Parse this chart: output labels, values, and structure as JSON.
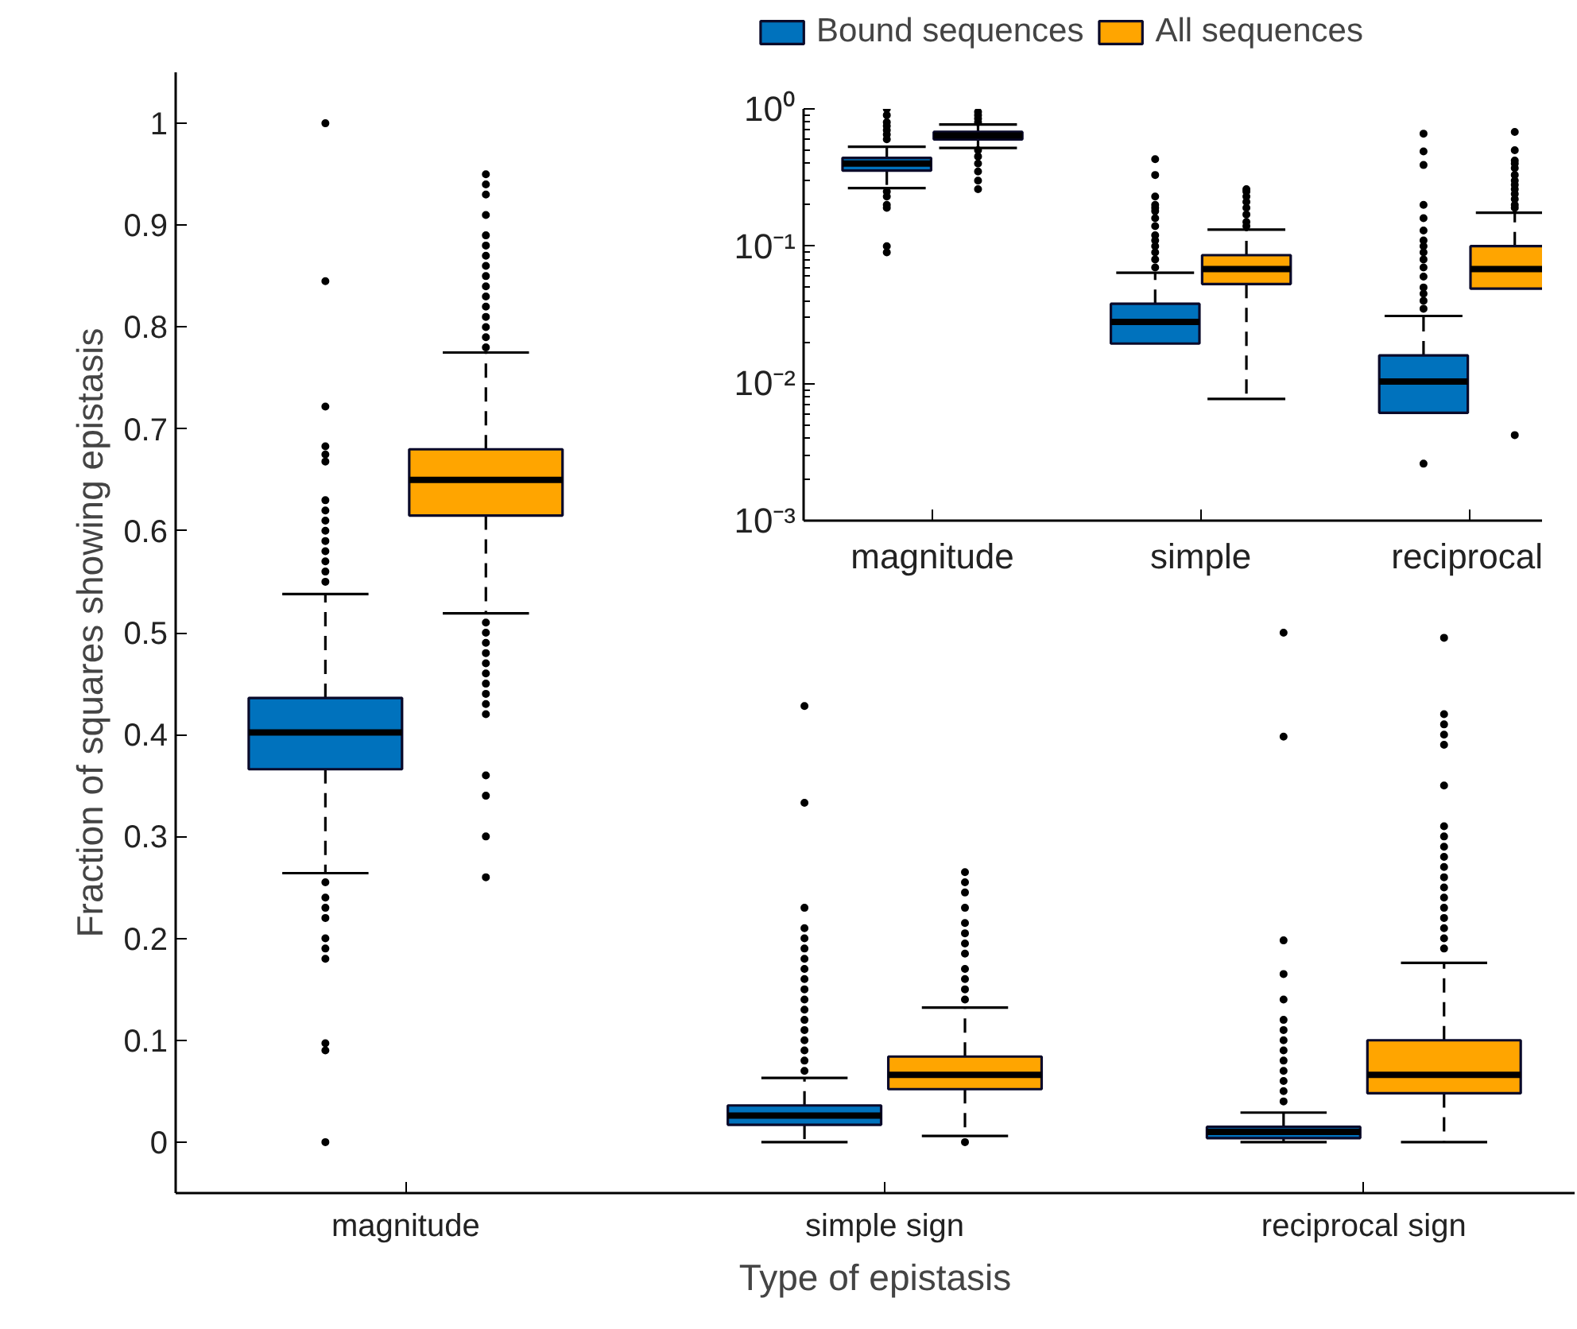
{
  "chart_data": [
    {
      "type": "box",
      "xlabel": "Type of epistasis",
      "ylabel": "Fraction of squares showing epistasis",
      "categories": [
        "magnitude",
        "simple sign",
        "reciprocal sign"
      ],
      "ylim": [
        -0.05,
        1.05
      ],
      "yticks": [
        0,
        0.1,
        0.2,
        0.3,
        0.4,
        0.5,
        0.6,
        0.7,
        0.8,
        0.9,
        1
      ],
      "legend": "top",
      "line_style": "dashed",
      "grid": false,
      "series": [
        {
          "name": "Bound sequences",
          "color": "#0072bd",
          "boxes": [
            {
              "low": 0.264,
              "q1": 0.366,
              "median": 0.402,
              "q3": 0.436,
              "high": 0.538,
              "outliers": [
                1.0,
                0.845,
                0.722,
                0.683,
                0.675,
                0.668,
                0.63,
                0.62,
                0.61,
                0.6,
                0.59,
                0.58,
                0.57,
                0.56,
                0.55,
                0.255,
                0.24,
                0.23,
                0.22,
                0.2,
                0.19,
                0.18,
                0.097,
                0.09,
                0.0
              ]
            },
            {
              "low": 0.0,
              "q1": 0.017,
              "median": 0.026,
              "q3": 0.036,
              "high": 0.063,
              "outliers": [
                0.428,
                0.333,
                0.23,
                0.21,
                0.2,
                0.19,
                0.18,
                0.17,
                0.16,
                0.15,
                0.14,
                0.13,
                0.12,
                0.11,
                0.1,
                0.09,
                0.08,
                0.07
              ]
            },
            {
              "low": 0.0,
              "q1": 0.004,
              "median": 0.01,
              "q3": 0.015,
              "high": 0.029,
              "outliers": [
                0.5,
                0.398,
                0.198,
                0.165,
                0.14,
                0.12,
                0.11,
                0.1,
                0.09,
                0.08,
                0.07,
                0.06,
                0.05,
                0.04
              ]
            }
          ]
        },
        {
          "name": "All sequences",
          "color": "#ffa500",
          "boxes": [
            {
              "low": 0.519,
              "q1": 0.615,
              "median": 0.65,
              "q3": 0.68,
              "high": 0.775,
              "outliers": [
                0.95,
                0.94,
                0.93,
                0.91,
                0.89,
                0.88,
                0.87,
                0.86,
                0.85,
                0.84,
                0.83,
                0.82,
                0.81,
                0.8,
                0.79,
                0.78,
                0.51,
                0.5,
                0.49,
                0.48,
                0.47,
                0.46,
                0.45,
                0.44,
                0.43,
                0.42,
                0.36,
                0.34,
                0.3,
                0.26
              ]
            },
            {
              "low": 0.006,
              "q1": 0.052,
              "median": 0.066,
              "q3": 0.084,
              "high": 0.132,
              "outliers": [
                0.265,
                0.255,
                0.245,
                0.23,
                0.215,
                0.205,
                0.195,
                0.185,
                0.17,
                0.16,
                0.15,
                0.14,
                0.0
              ]
            },
            {
              "low": 0.0,
              "q1": 0.048,
              "median": 0.066,
              "q3": 0.1,
              "high": 0.176,
              "outliers": [
                0.495,
                0.42,
                0.41,
                0.4,
                0.39,
                0.35,
                0.31,
                0.3,
                0.29,
                0.28,
                0.27,
                0.26,
                0.25,
                0.24,
                0.23,
                0.22,
                0.21,
                0.2,
                0.19
              ]
            }
          ]
        }
      ]
    },
    {
      "type": "box",
      "categories": [
        "magnitude",
        "simple",
        "reciprocal"
      ],
      "log": true,
      "ylim": [
        0.001,
        1
      ],
      "yticks": [
        {
          "value": 0.001,
          "label": "10⁻³"
        },
        {
          "value": 0.01,
          "label": "10⁻²"
        },
        {
          "value": 0.1,
          "label": "10⁻¹"
        },
        {
          "value": 1,
          "label": "10⁰"
        }
      ],
      "line_style": "dashed",
      "grid": false,
      "series": [
        {
          "color": "#0072bd",
          "boxes": [
            {
              "low": 0.265,
              "q1": 0.355,
              "median": 0.4,
              "q3": 0.44,
              "high": 0.53,
              "outliers": [
                1.0,
                0.9,
                0.8,
                0.75,
                0.7,
                0.65,
                0.6,
                0.25,
                0.23,
                0.2,
                0.19,
                0.1,
                0.09
              ]
            },
            {
              "low": null,
              "q1": 0.0195,
              "median": 0.028,
              "q3": 0.038,
              "high": 0.064,
              "outliers": [
                0.43,
                0.33,
                0.23,
                0.2,
                0.19,
                0.18,
                0.16,
                0.14,
                0.12,
                0.11,
                0.1,
                0.09,
                0.08,
                0.07
              ]
            },
            {
              "low": null,
              "q1": 0.0061,
              "median": 0.0103,
              "q3": 0.016,
              "high": 0.031,
              "outliers": [
                0.66,
                0.49,
                0.39,
                0.2,
                0.16,
                0.13,
                0.11,
                0.1,
                0.09,
                0.08,
                0.07,
                0.06,
                0.05,
                0.045,
                0.04,
                0.035,
                0.0026
              ]
            }
          ]
        },
        {
          "color": "#ffa500",
          "boxes": [
            {
              "low": 0.52,
              "q1": 0.6,
              "median": 0.64,
              "q3": 0.68,
              "high": 0.77,
              "outliers": [
                0.95,
                0.9,
                0.85,
                0.8,
                0.5,
                0.45,
                0.4,
                0.35,
                0.3,
                0.26
              ]
            },
            {
              "low": 0.0077,
              "q1": 0.053,
              "median": 0.068,
              "q3": 0.086,
              "high": 0.132,
              "outliers": [
                0.26,
                0.25,
                0.23,
                0.21,
                0.19,
                0.17,
                0.15,
                0.14
              ]
            },
            {
              "low": null,
              "q1": 0.049,
              "median": 0.068,
              "q3": 0.1,
              "high": 0.175,
              "outliers": [
                0.68,
                0.5,
                0.42,
                0.4,
                0.37,
                0.33,
                0.3,
                0.28,
                0.26,
                0.24,
                0.22,
                0.2,
                0.19,
                0.0042
              ]
            }
          ]
        }
      ]
    }
  ]
}
